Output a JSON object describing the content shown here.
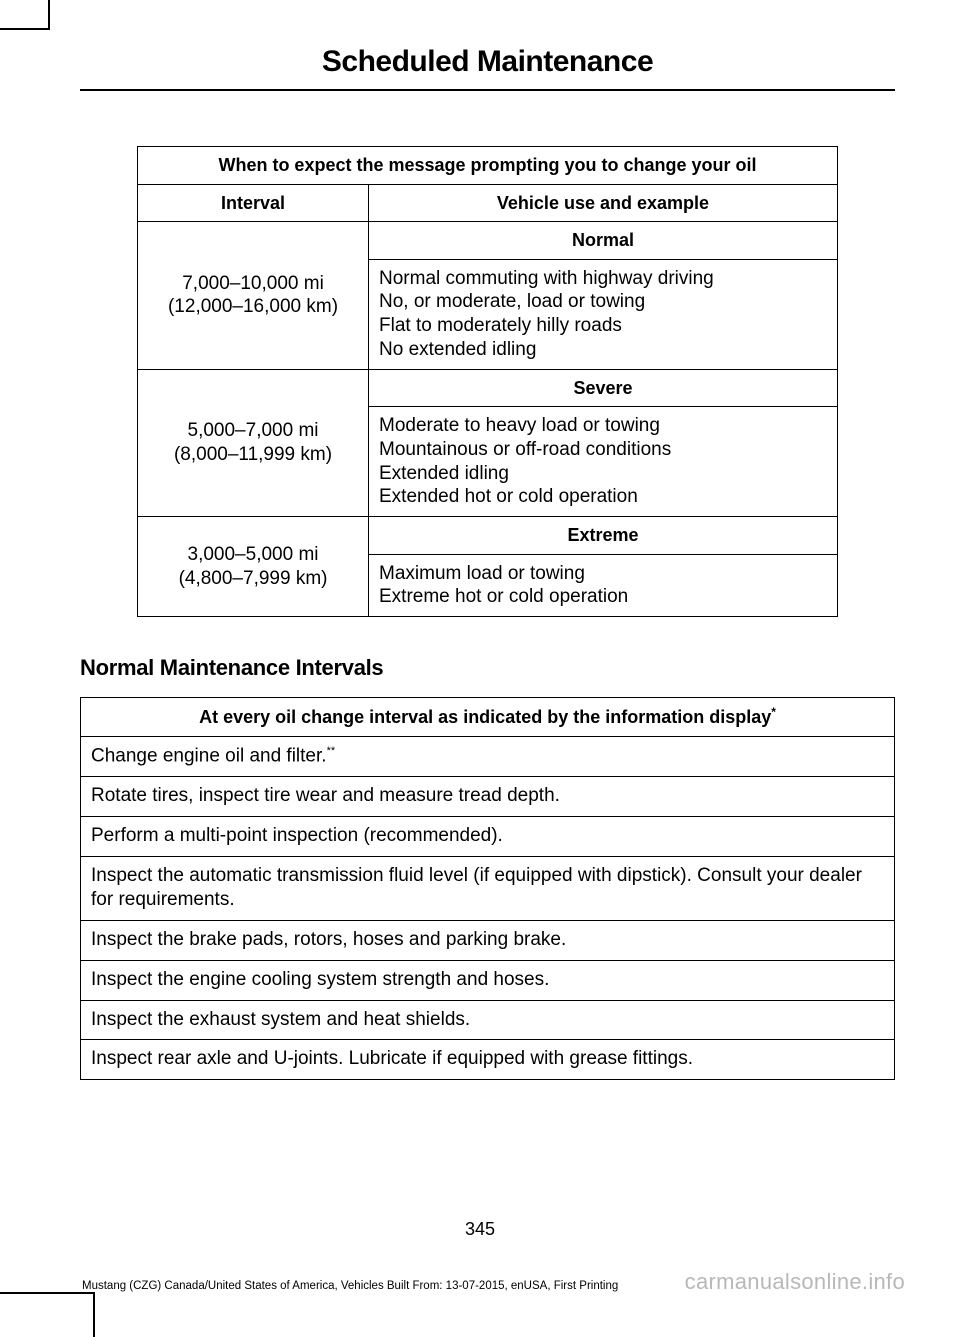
{
  "title": "Scheduled Maintenance",
  "table1": {
    "caption": "When to expect the message prompting you to change your oil",
    "h_interval": "Interval",
    "h_vehicle": "Vehicle use and example",
    "rows": [
      {
        "interval_mi": "7,000–10,000 mi",
        "interval_km": "(12,000–16,000 km)",
        "category": "Normal",
        "desc": "Normal commuting with highway driving\nNo, or moderate, load or towing\nFlat to moderately hilly roads\nNo extended idling"
      },
      {
        "interval_mi": "5,000–7,000 mi",
        "interval_km": "(8,000–11,999 km)",
        "category": "Severe",
        "desc": "Moderate to heavy load or towing\nMountainous or off-road conditions\nExtended idling\nExtended hot or cold operation"
      },
      {
        "interval_mi": "3,000–5,000 mi",
        "interval_km": "(4,800–7,999 km)",
        "category": "Extreme",
        "desc": "Maximum load or towing\nExtreme hot or cold operation"
      }
    ]
  },
  "section_heading": "Normal Maintenance Intervals",
  "table2": {
    "header": "At every oil change interval as indicated by the information display",
    "header_sup": "*",
    "items": [
      {
        "text": "Change engine oil and filter.",
        "sup": "**"
      },
      {
        "text": "Rotate tires, inspect tire wear and measure tread depth."
      },
      {
        "text": "Perform a multi-point inspection (recommended)."
      },
      {
        "text": "Inspect the automatic transmission fluid level (if equipped with dipstick). Consult your dealer for requirements."
      },
      {
        "text": "Inspect the brake pads, rotors, hoses and parking brake."
      },
      {
        "text": "Inspect the engine cooling system strength and hoses."
      },
      {
        "text": "Inspect the exhaust system and heat shields."
      },
      {
        "text": "Inspect rear axle and U-joints. Lubricate if equipped with grease fittings."
      }
    ]
  },
  "page_number": "345",
  "footer": "Mustang (CZG) Canada/United States of America, Vehicles Built From: 13-07-2015, enUSA, First Printing",
  "watermark": "carmanualsonline.info"
}
